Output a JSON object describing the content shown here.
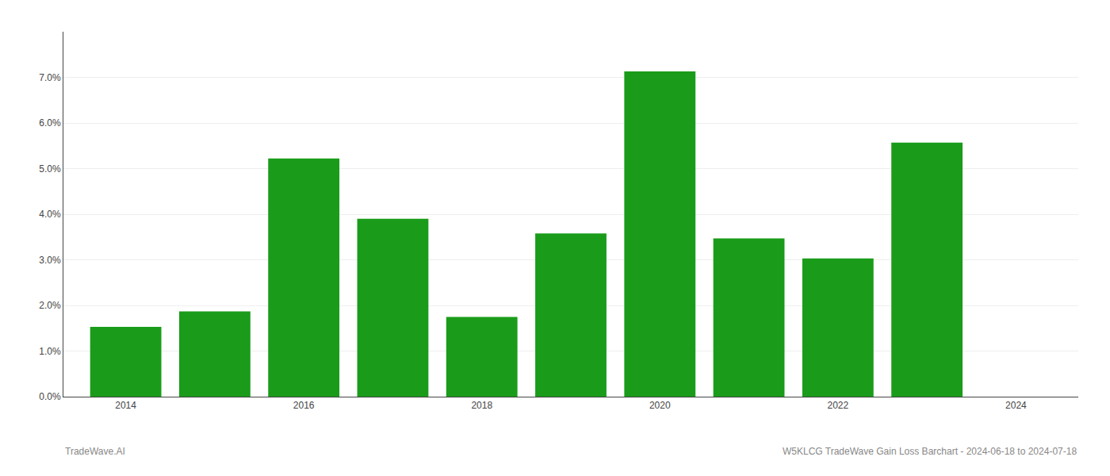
{
  "chart_data": {
    "type": "bar",
    "x": [
      2014,
      2015,
      2016,
      2017,
      2018,
      2019,
      2020,
      2021,
      2022,
      2023
    ],
    "values": [
      0.0153,
      0.0187,
      0.0522,
      0.039,
      0.0175,
      0.0358,
      0.0713,
      0.0347,
      0.0303,
      0.0557
    ],
    "color": "#1a9c1a",
    "xlim": [
      2013.3,
      2024.7
    ],
    "xticks": [
      2014,
      2016,
      2018,
      2020,
      2022,
      2024
    ],
    "ylim": [
      0.0,
      0.08
    ],
    "yticks": [
      {
        "value": 0.0,
        "label": "0.0%"
      },
      {
        "value": 0.01,
        "label": "1.0%"
      },
      {
        "value": 0.02,
        "label": "2.0%"
      },
      {
        "value": 0.03,
        "label": "3.0%"
      },
      {
        "value": 0.04,
        "label": "4.0%"
      },
      {
        "value": 0.05,
        "label": "5.0%"
      },
      {
        "value": 0.06,
        "label": "6.0%"
      },
      {
        "value": 0.07,
        "label": "7.0%"
      }
    ],
    "grid": true,
    "annotations": [
      "TradeWave.AI",
      "W5KLCG TradeWave Gain Loss Barchart - 2024-06-18 to 2024-07-18"
    ]
  }
}
